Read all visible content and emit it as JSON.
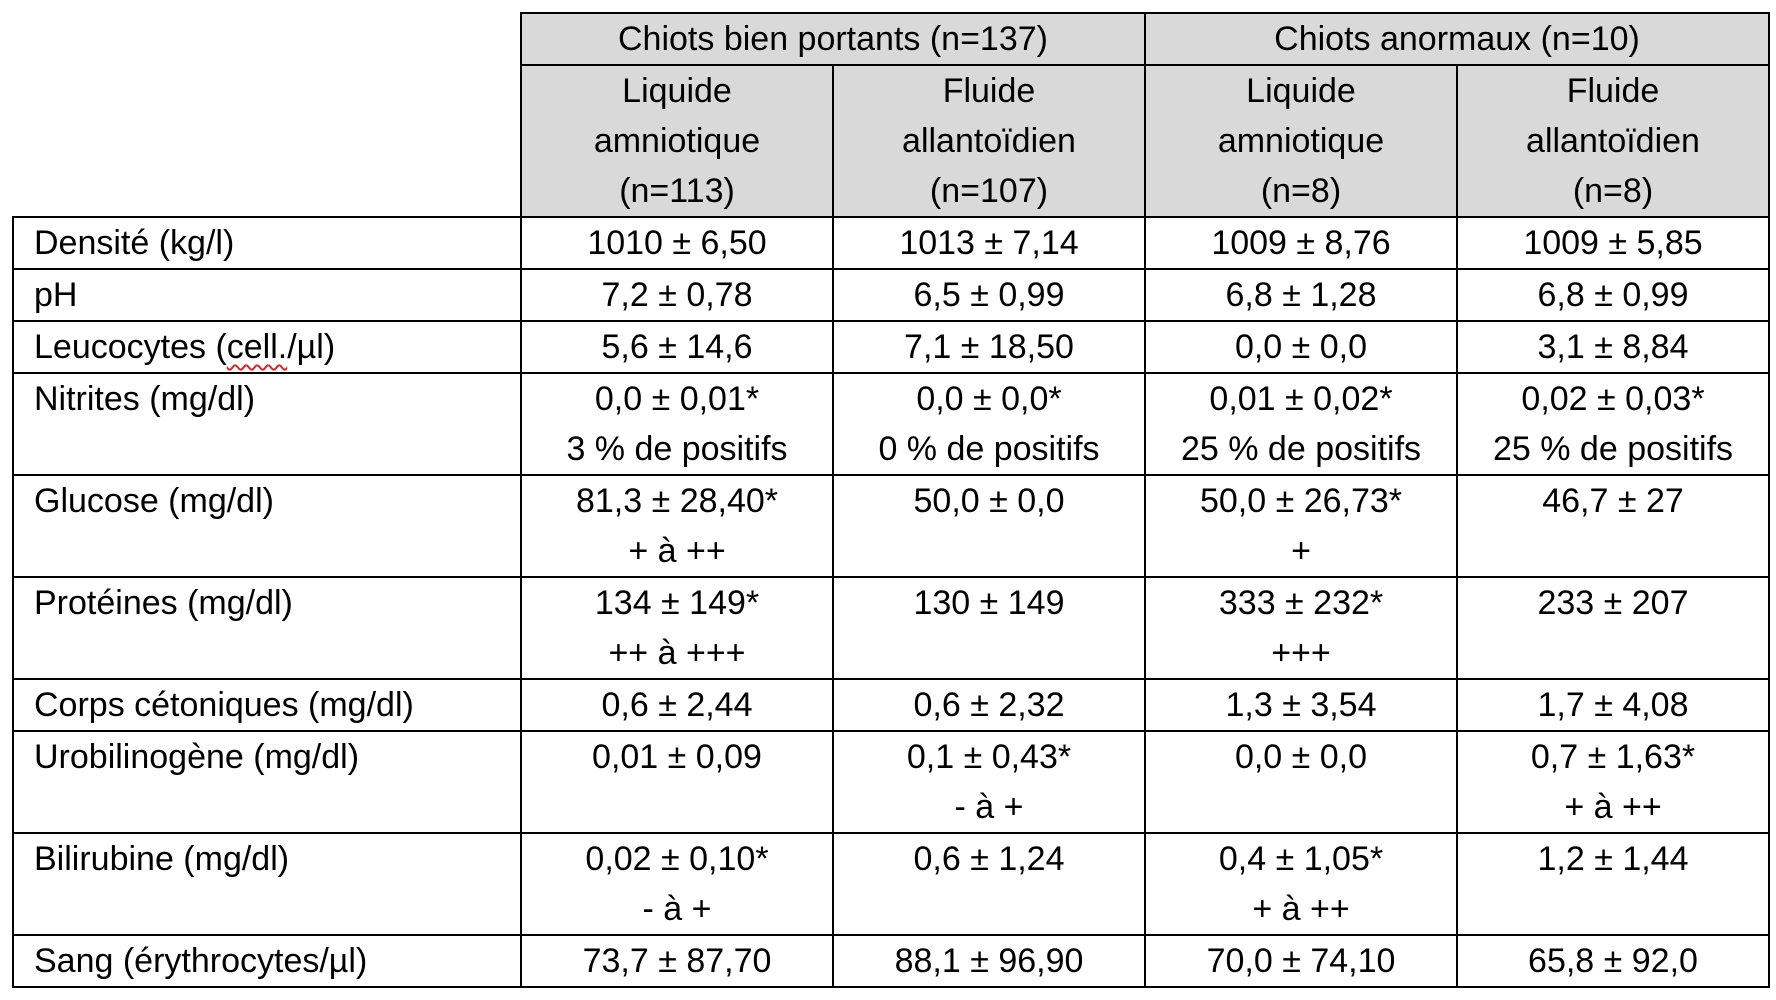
{
  "table": {
    "groups": [
      {
        "label": "Chiots bien portants (n=137)"
      },
      {
        "label": "Chiots anormaux (n=10)"
      }
    ],
    "subheaders": [
      {
        "lines": [
          "Liquide",
          "amniotique",
          "(n=113)"
        ]
      },
      {
        "lines": [
          "Fluide",
          "allantoïdien",
          "(n=107)"
        ]
      },
      {
        "lines": [
          "Liquide",
          "amniotique",
          "(n=8)"
        ]
      },
      {
        "lines": [
          "Fluide",
          "allantoïdien",
          "(n=8)"
        ]
      }
    ],
    "rows": [
      {
        "label": "Densité (kg/l)",
        "cells": [
          [
            "1010 ± 6,50"
          ],
          [
            "1013 ± 7,14"
          ],
          [
            "1009 ± 8,76"
          ],
          [
            "1009 ± 5,85"
          ]
        ]
      },
      {
        "label": "pH",
        "cells": [
          [
            "7,2 ± 0,78"
          ],
          [
            "6,5 ± 0,99"
          ],
          [
            "6,8 ± 1,28"
          ],
          [
            "6,8 ± 0,99"
          ]
        ]
      },
      {
        "label_parts": [
          "Leucocytes (",
          "cell.",
          "/µl)"
        ],
        "cells": [
          [
            "5,6 ± 14,6"
          ],
          [
            "7,1 ± 18,50"
          ],
          [
            "0,0 ± 0,0"
          ],
          [
            "3,1 ± 8,84"
          ]
        ]
      },
      {
        "label": "Nitrites (mg/dl)",
        "cells": [
          [
            "0,0 ± 0,01*",
            "3 % de positifs"
          ],
          [
            "0,0 ± 0,0*",
            "0 % de positifs"
          ],
          [
            "0,01 ± 0,02*",
            "25 % de positifs"
          ],
          [
            "0,02 ± 0,03*",
            "25 % de positifs"
          ]
        ]
      },
      {
        "label": "Glucose (mg/dl)",
        "cells": [
          [
            "81,3 ± 28,40*",
            "+ à ++"
          ],
          [
            "50,0 ± 0,0"
          ],
          [
            "50,0 ± 26,73*",
            "+"
          ],
          [
            "46,7 ± 27"
          ]
        ]
      },
      {
        "label": "Protéines (mg/dl)",
        "cells": [
          [
            "134 ± 149*",
            "++ à +++"
          ],
          [
            "130 ± 149"
          ],
          [
            "333 ± 232*",
            "+++"
          ],
          [
            "233 ± 207"
          ]
        ]
      },
      {
        "label": "Corps cétoniques (mg/dl)",
        "cells": [
          [
            "0,6 ± 2,44"
          ],
          [
            "0,6 ± 2,32"
          ],
          [
            "1,3 ± 3,54"
          ],
          [
            "1,7 ± 4,08"
          ]
        ]
      },
      {
        "label": "Urobilinogène (mg/dl)",
        "cells": [
          [
            "0,01 ± 0,09"
          ],
          [
            "0,1 ± 0,43*",
            "- à +"
          ],
          [
            "0,0 ± 0,0"
          ],
          [
            "0,7 ± 1,63*",
            "+ à ++"
          ]
        ]
      },
      {
        "label": "Bilirubine (mg/dl)",
        "cells": [
          [
            "0,02 ± 0,10*",
            "- à +"
          ],
          [
            "0,6 ± 1,24"
          ],
          [
            "0,4 ± 1,05*",
            "+ à ++"
          ],
          [
            "1,2 ± 1,44"
          ]
        ]
      },
      {
        "label": "Sang (érythrocytes/µl)",
        "cells": [
          [
            "73,7 ± 87,70"
          ],
          [
            "88,1 ± 96,90"
          ],
          [
            "70,0 ± 74,10"
          ],
          [
            "65,8 ± 92,0"
          ]
        ]
      }
    ]
  }
}
